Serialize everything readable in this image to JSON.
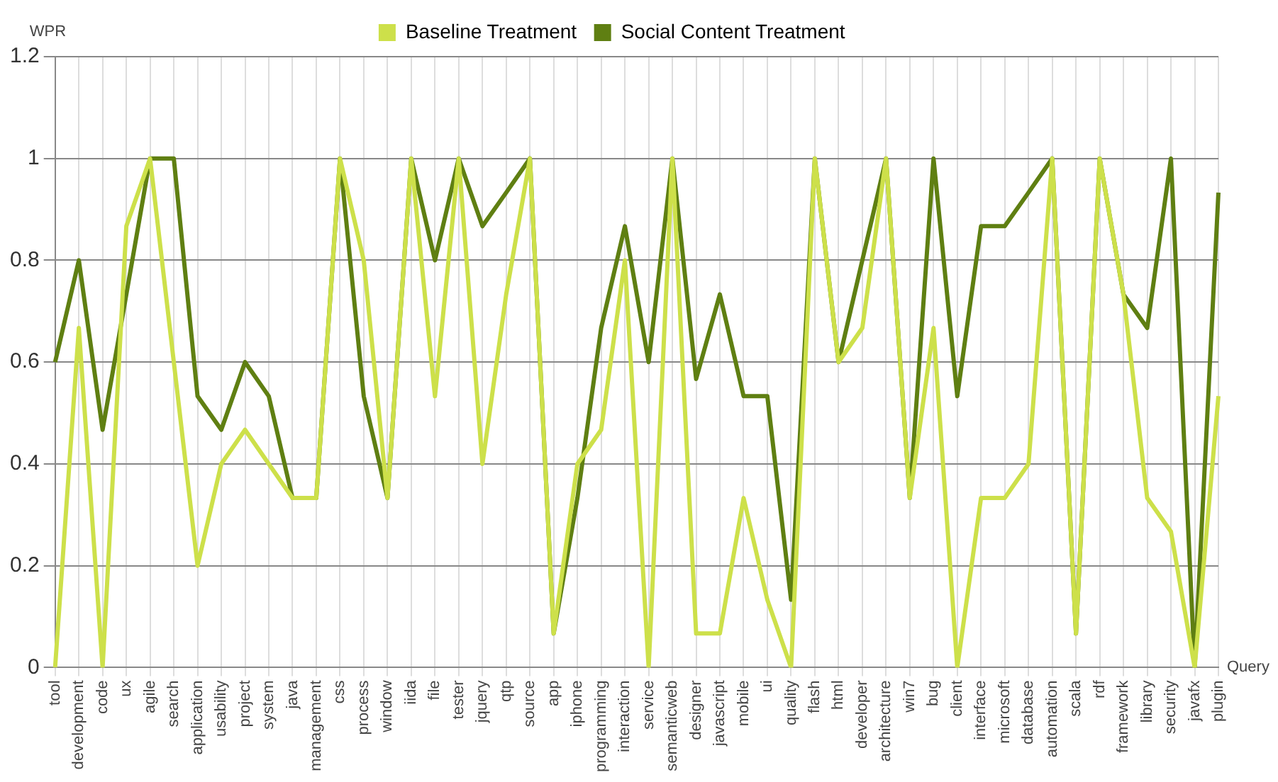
{
  "chart_data": {
    "type": "line",
    "xlabel": "Query",
    "ylabel": "WPR",
    "categories": [
      "tool",
      "development",
      "code",
      "ux",
      "agile",
      "search",
      "application",
      "usability",
      "project",
      "system",
      "java",
      "management",
      "css",
      "process",
      "window",
      "iida",
      "file",
      "tester",
      "jquery",
      "qtp",
      "source",
      "app",
      "iphone",
      "programming",
      "interaction",
      "service",
      "semanticweb",
      "designer",
      "javascript",
      "mobile",
      "ui",
      "quality",
      "flash",
      "html",
      "developer",
      "architecture",
      "win7",
      "bug",
      "client",
      "interface",
      "microsoft",
      "database",
      "automation",
      "scala",
      "rdf",
      "framework",
      "library",
      "security",
      "javafx",
      "plugin"
    ],
    "series": [
      {
        "name": "Baseline Treatment",
        "color": "#cde04a",
        "values": [
          0,
          0.667,
          0,
          0.867,
          1,
          0.6,
          0.2,
          0.4,
          0.467,
          0.4,
          0.333,
          0.333,
          1,
          0.8,
          0.333,
          1,
          0.533,
          1,
          0.4,
          0.733,
          1,
          0.067,
          0.4,
          0.467,
          0.8,
          0,
          1,
          0.067,
          0.067,
          0.333,
          0.133,
          0,
          1,
          0.6,
          0.667,
          1,
          0.333,
          0.667,
          0,
          0.333,
          0.333,
          0.4,
          1,
          0.067,
          1,
          0.733,
          0.333,
          0.267,
          0,
          0.533
        ]
      },
      {
        "name": "Social Content Treatment",
        "color": "#5f7f12",
        "values": [
          0.6,
          0.8,
          0.467,
          0.733,
          1,
          1,
          0.533,
          0.467,
          0.6,
          0.533,
          0.333,
          0.333,
          1,
          0.533,
          0.333,
          1,
          0.8,
          1,
          0.867,
          0.933,
          1,
          0.067,
          0.333,
          0.667,
          0.867,
          0.6,
          1,
          0.567,
          0.733,
          0.533,
          0.533,
          0.133,
          1,
          0.6,
          0.8,
          1,
          0.333,
          1,
          0.533,
          0.867,
          0.867,
          0.933,
          1,
          0.067,
          1,
          0.733,
          0.667,
          1,
          0,
          0.933
        ]
      }
    ],
    "ylim": [
      0,
      1.2
    ],
    "yticks": [
      0,
      0.2,
      0.4,
      0.6,
      0.8,
      1,
      1.2
    ],
    "grid": true,
    "legend": "top",
    "marker": "none",
    "line_style": "solid"
  }
}
